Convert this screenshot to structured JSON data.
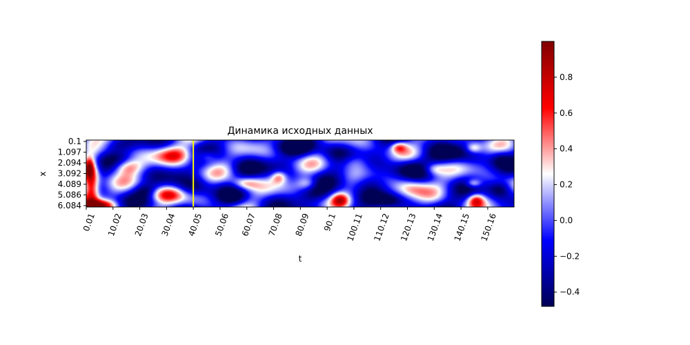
{
  "chart_data": {
    "type": "heatmap",
    "title": "Динамика исходных данных",
    "xlabel": "t",
    "ylabel": "x",
    "x_tick_labels": [
      "0.01",
      "10.02",
      "20.03",
      "30.04",
      "40.05",
      "50.06",
      "60.07",
      "70.08",
      "80.09",
      "90.1",
      "100.11",
      "110.12",
      "120.13",
      "130.14",
      "140.15",
      "150.16"
    ],
    "y_tick_labels": [
      "0.1",
      "1.097",
      "2.094",
      "3.092",
      "4.089",
      "5.086",
      "6.084"
    ],
    "xlim": [
      0.01,
      160
    ],
    "ylim_top_to_bottom": [
      0.1,
      6.084
    ],
    "colormap": "seismic",
    "colorbar": {
      "min": -0.48,
      "max": 1.0,
      "ticks": [
        -0.4,
        -0.2,
        0.0,
        0.2,
        0.4,
        0.6,
        0.8
      ],
      "tick_labels": [
        "−0.4",
        "−0.2",
        "0.0",
        "0.2",
        "0.4",
        "0.6",
        "0.8"
      ]
    },
    "marker_line": {
      "t": 40.05,
      "color": "#ffff00"
    },
    "features": [
      {
        "t": 1.5,
        "x": 4.2,
        "value": 0.9,
        "rt": 3,
        "rx": 2.2
      },
      {
        "t": 4.0,
        "x": 6.0,
        "value": 0.85,
        "rt": 6,
        "rx": 0.5
      },
      {
        "t": 1.0,
        "x": 2.6,
        "value": 0.5,
        "rt": 1.5,
        "rx": 0.8
      },
      {
        "t": 33,
        "x": 1.4,
        "value": 0.45,
        "rt": 7,
        "rx": 0.8
      },
      {
        "t": 45,
        "x": 1.5,
        "value": 0.35,
        "rt": 4,
        "rx": 0.6
      },
      {
        "t": 15,
        "x": 2.5,
        "value": 0.4,
        "rt": 6,
        "rx": 0.7
      },
      {
        "t": 30,
        "x": 5.0,
        "value": 0.4,
        "rt": 6,
        "rx": 0.7
      },
      {
        "t": 59,
        "x": 4.0,
        "value": 0.45,
        "rt": 5,
        "rx": 0.6
      },
      {
        "t": 72,
        "x": 3.4,
        "value": 0.45,
        "rt": 3,
        "rx": 0.6
      },
      {
        "t": 95,
        "x": 5.5,
        "value": 0.5,
        "rt": 3,
        "rx": 0.6
      },
      {
        "t": 117,
        "x": 0.7,
        "value": 0.45,
        "rt": 3,
        "rx": 0.5
      },
      {
        "t": 122,
        "x": 4.3,
        "value": 0.35,
        "rt": 6,
        "rx": 0.9
      },
      {
        "t": 146,
        "x": 5.5,
        "value": 0.5,
        "rt": 3,
        "rx": 0.6
      },
      {
        "t": 145,
        "x": 4.0,
        "value": 0.4,
        "rt": 3,
        "rx": 0.4
      },
      {
        "t": 145,
        "x": 0.8,
        "value": 0.35,
        "rt": 3,
        "rx": 0.5
      },
      {
        "t": 100,
        "x": 2.0,
        "value": 0.3,
        "rt": 6,
        "rx": 0.8
      },
      {
        "t": 83,
        "x": 4.0,
        "value": 0.3,
        "rt": 4,
        "rx": 0.6
      },
      {
        "t": 130,
        "x": 2.7,
        "value": 0.3,
        "rt": 4,
        "rx": 0.6
      },
      {
        "t": 10,
        "x": 0.5,
        "value": -0.35,
        "rt": 8,
        "rx": 0.6
      },
      {
        "t": 77,
        "x": 0.7,
        "value": -0.45,
        "rt": 8,
        "rx": 0.8
      },
      {
        "t": 93,
        "x": 1.0,
        "value": -0.4,
        "rt": 6,
        "rx": 0.9
      },
      {
        "t": 105,
        "x": 3.8,
        "value": -0.45,
        "rt": 7,
        "rx": 0.9
      },
      {
        "t": 85,
        "x": 5.0,
        "value": -0.4,
        "rt": 7,
        "rx": 0.8
      },
      {
        "t": 120,
        "x": 2.5,
        "value": -0.45,
        "rt": 6,
        "rx": 0.9
      },
      {
        "t": 136,
        "x": 1.5,
        "value": -0.45,
        "rt": 7,
        "rx": 0.8
      },
      {
        "t": 155,
        "x": 1.7,
        "value": -0.4,
        "rt": 4,
        "rx": 0.8
      },
      {
        "t": 155,
        "x": 4.5,
        "value": -0.45,
        "rt": 4,
        "rx": 0.7
      },
      {
        "t": 60,
        "x": 2.6,
        "value": -0.35,
        "rt": 6,
        "rx": 0.8
      },
      {
        "t": 40,
        "x": 4.4,
        "value": -0.4,
        "rt": 6,
        "rx": 0.8
      },
      {
        "t": 22,
        "x": 4.6,
        "value": -0.35,
        "rt": 4,
        "rx": 0.6
      },
      {
        "t": 113,
        "x": 5.6,
        "value": -0.45,
        "rt": 5,
        "rx": 0.6
      },
      {
        "t": 55,
        "x": 5.4,
        "value": -0.35,
        "rt": 5,
        "rx": 0.7
      }
    ]
  }
}
